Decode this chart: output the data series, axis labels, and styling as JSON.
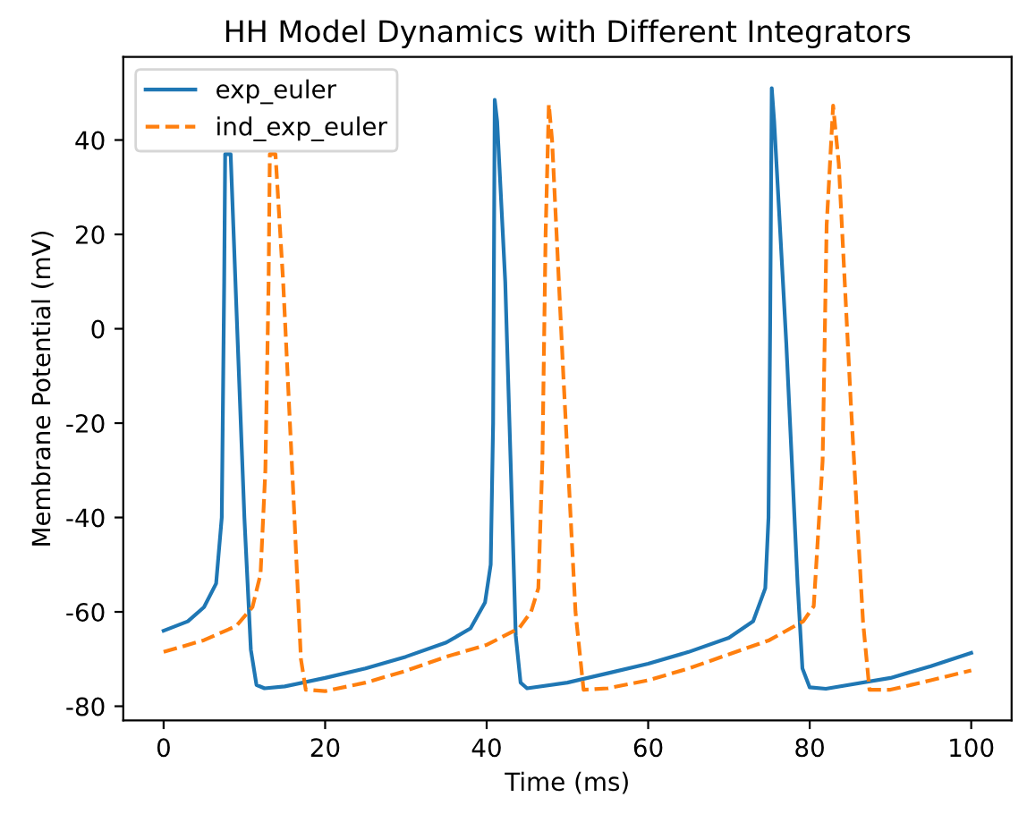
{
  "chart_data": {
    "type": "line",
    "title": "HH Model Dynamics with Different Integrators",
    "xlabel": "Time (ms)",
    "ylabel": "Membrane Potential (mV)",
    "xlim": [
      -5,
      105
    ],
    "xticks": [
      0,
      20,
      40,
      60,
      80,
      100
    ],
    "ylim": [
      -83,
      57.6
    ],
    "yticks": [
      -80,
      -60,
      -40,
      -20,
      0,
      20,
      40
    ],
    "grid": false,
    "legend": "top left",
    "marker": "none",
    "series": [
      {
        "name": "exp_euler",
        "color": "#1f77b4",
        "line_style": "solid",
        "x": [
          0,
          3,
          5,
          6.5,
          7.2,
          7.5,
          7.62,
          7.7,
          8.0,
          8.3,
          9,
          10,
          10.8,
          11.5,
          12.5,
          15,
          20,
          25,
          30,
          35,
          38,
          39.8,
          40.5,
          40.8,
          41,
          41.3,
          42.3,
          43,
          43.6,
          44.2,
          45,
          50,
          55,
          60,
          65,
          70,
          73,
          74.5,
          74.9,
          75.1,
          75.3,
          75.6,
          77.1,
          78.5,
          79.1,
          80,
          82,
          90,
          95,
          100
        ],
        "values": [
          -64,
          -62,
          -59,
          -54,
          -40,
          10,
          37,
          null,
          null,
          37,
          5,
          -40,
          -68,
          -75.5,
          -76.2,
          -75.8,
          -74,
          -72,
          -69.5,
          -66.5,
          -63.5,
          -58,
          -50,
          -20,
          48.5,
          44,
          10,
          -30,
          -65,
          -75,
          -76.2,
          -75,
          -73,
          -71,
          -68.5,
          -65.5,
          -62,
          -55,
          -40,
          0,
          51,
          44,
          -3,
          -54,
          -72,
          -76,
          -76.3,
          -74,
          -71.5,
          -68.7
        ]
      },
      {
        "name": "ind_exp_euler",
        "color": "#ff7f0e",
        "line_style": "dashed",
        "x": [
          0,
          5,
          9,
          11,
          12,
          12.6,
          13.0,
          13.15,
          13.3,
          13.6,
          13.85,
          14.8,
          16.2,
          17,
          17.6,
          20,
          25,
          30,
          35,
          40,
          44,
          45.5,
          46.4,
          46.9,
          47.3,
          47.7,
          48.1,
          49.5,
          51,
          52,
          55,
          60,
          65,
          70,
          75,
          79.2,
          80.5,
          81.6,
          82.1,
          82.9,
          83.6,
          85.1,
          86.6,
          87.4,
          90,
          95,
          100
        ],
        "values": [
          -68.5,
          -66,
          -63,
          -59,
          -52,
          -30,
          10,
          37,
          null,
          null,
          37,
          10,
          -40,
          -70,
          -76.5,
          -76.8,
          -75,
          -72.5,
          -69.5,
          -67,
          -63.5,
          -60,
          -55,
          -28,
          20,
          47.6,
          40,
          -10,
          -60,
          -76.5,
          -76.2,
          -74.5,
          -72,
          -69,
          -66,
          -62,
          -58.8,
          -28,
          22,
          47.3,
          35,
          -16,
          -62,
          -76.5,
          -76.5,
          -74.5,
          -72.4
        ]
      }
    ]
  }
}
